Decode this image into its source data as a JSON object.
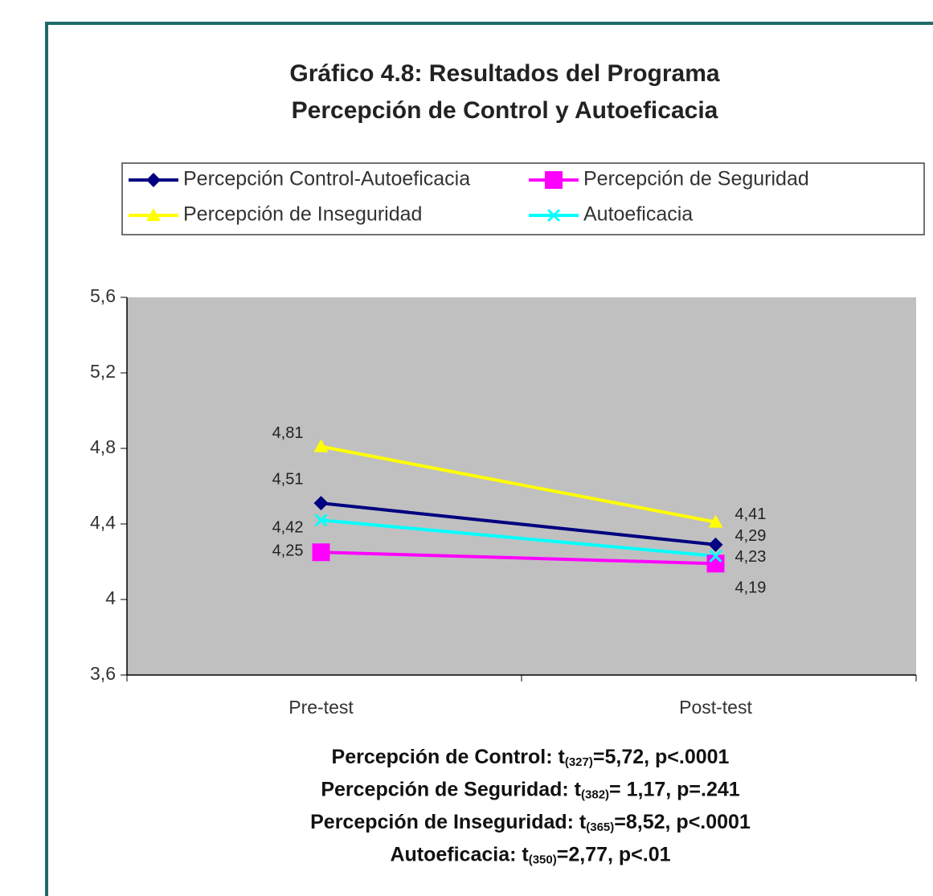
{
  "chart_data": {
    "type": "line",
    "title": "Gráfico 4.8: Resultados del Programa",
    "subtitle": "Percepción de Control y Autoeficacia",
    "categories": [
      "Pre-test",
      "Post-test"
    ],
    "series": [
      {
        "name": "Percepción Control-Autoeficacia",
        "color": "#000080",
        "marker": "diamond",
        "values": [
          4.51,
          4.29
        ],
        "value_labels": [
          "4,51",
          "4,29"
        ]
      },
      {
        "name": "Percepción de Seguridad",
        "color": "#ff00ff",
        "marker": "square",
        "values": [
          4.25,
          4.19
        ],
        "value_labels": [
          "4,25",
          "4,19"
        ]
      },
      {
        "name": "Percepción de Inseguridad",
        "color": "#ffff00",
        "marker": "triangle",
        "values": [
          4.81,
          4.41
        ],
        "value_labels": [
          "4,81",
          "4,41"
        ]
      },
      {
        "name": "Autoeficacia",
        "color": "#00ffff",
        "marker": "x",
        "values": [
          4.42,
          4.23
        ],
        "value_labels": [
          "4,42",
          "4,23"
        ]
      }
    ],
    "ylim": [
      3.6,
      5.6
    ],
    "yticks": [
      {
        "value": 3.6,
        "label": "3,6"
      },
      4,
      {
        "value": 4.4,
        "label": "4,4"
      },
      {
        "value": 4.8,
        "label": "4,8"
      },
      {
        "value": 5.2,
        "label": "5,2"
      },
      {
        "value": 5.6,
        "label": "5,6"
      }
    ],
    "plot_background": "#c0c0c0",
    "annotations": [
      {
        "text": "Percepción de Control: t",
        "sub": "(327)",
        "rest": "=5,72, p<.0001"
      },
      {
        "text": "Percepción de Seguridad: t",
        "sub": "(382)",
        "rest": "= 1,17, p=.241"
      },
      {
        "text": "Percepción de Inseguridad: t",
        "sub": "(365)",
        "rest": "=8,52, p<.0001"
      },
      {
        "text": "Autoeficacia: t",
        "sub": "(350)",
        "rest": "=2,77, p<.01"
      }
    ]
  }
}
